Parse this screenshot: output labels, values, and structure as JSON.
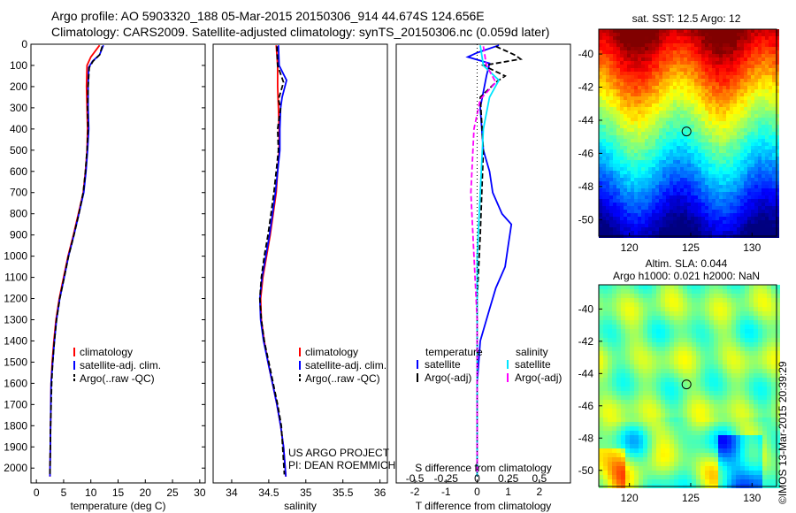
{
  "header": {
    "line1": "Argo profile: AO 5903320_188 05-Mar-2015 20150306_914 44.674S 124.656E",
    "line2": "Climatology: CARS2009. Satellite-adjusted climatology: synTS_20150306.nc (0.059d later)"
  },
  "credits": {
    "line1": "US ARGO PROJECT",
    "line2": "PI: DEAN ROEMMICH"
  },
  "watermark": "©IMOS 13-Mar-2015 20:39:29",
  "colors": {
    "climatology": "#ff0000",
    "satellite": "#0000ff",
    "argo": "#000000",
    "salinity_satellite": "#00e5ff",
    "salinity_argo": "#ff00ff"
  },
  "chart_data": [
    {
      "type": "line",
      "id": "temperature",
      "xlabel": "temperature (deg C)",
      "ylabel": "",
      "xlim": [
        -1,
        31
      ],
      "ylim": [
        2070,
        0
      ],
      "xticks": [
        0,
        5,
        10,
        15,
        20,
        25,
        30
      ],
      "yticks": [
        0,
        100,
        200,
        300,
        400,
        500,
        600,
        700,
        800,
        900,
        1000,
        1100,
        1200,
        1300,
        1400,
        1500,
        1600,
        1700,
        1800,
        1900,
        2000
      ],
      "legend": {
        "position": "bottom-right",
        "entries": [
          "climatology",
          "satellite-adj. clim.",
          "Argo(..raw -QC)"
        ]
      },
      "series": [
        {
          "name": "climatology",
          "color": "#ff0000",
          "x": [
            11.6,
            10.0,
            9.3,
            9.2,
            9.3,
            9.4,
            9.3,
            9.0,
            8.6,
            7.7,
            6.8,
            5.8,
            5.0,
            4.2,
            3.6,
            3.2,
            2.9,
            2.7,
            2.6,
            2.5
          ],
          "y": [
            5,
            60,
            100,
            200,
            300,
            400,
            500,
            600,
            700,
            800,
            900,
            1000,
            1100,
            1200,
            1300,
            1400,
            1500,
            1600,
            1800,
            2040
          ]
        },
        {
          "name": "satellite-adj. clim.",
          "color": "#0000ff",
          "x": [
            12.3,
            11.6,
            10.3,
            9.6,
            9.5,
            9.5,
            9.6,
            9.4,
            9.1,
            8.7,
            7.8,
            6.9,
            5.9,
            5.1,
            4.3,
            3.7,
            3.3,
            3.0,
            2.7,
            2.6,
            2.5
          ],
          "y": [
            5,
            50,
            80,
            110,
            200,
            300,
            400,
            500,
            600,
            700,
            800,
            900,
            1000,
            1100,
            1200,
            1300,
            1400,
            1500,
            1600,
            1800,
            2040
          ]
        },
        {
          "name": "Argo(..raw -QC)",
          "color": "#000000",
          "x": [
            12.1,
            11.6,
            10.4,
            9.7,
            9.5,
            9.4,
            9.5,
            9.3,
            9.0,
            8.6,
            7.8,
            6.9,
            5.9,
            5.1,
            4.3,
            3.7,
            3.3,
            3.0,
            2.8,
            2.6,
            2.5
          ],
          "y": [
            10,
            50,
            80,
            110,
            200,
            300,
            400,
            500,
            600,
            700,
            800,
            900,
            1000,
            1100,
            1200,
            1300,
            1400,
            1500,
            1600,
            1800,
            2030
          ]
        }
      ]
    },
    {
      "type": "line",
      "id": "salinity",
      "xlabel": "salinity",
      "xlim": [
        33.75,
        36.1
      ],
      "ylim": [
        2070,
        0
      ],
      "xticks": [
        34,
        34.5,
        35,
        35.5,
        36
      ],
      "legend": {
        "position": "bottom-right",
        "entries": [
          "climatology",
          "satellite-adj. clim.",
          "Argo(..raw -QC)"
        ]
      },
      "series": [
        {
          "name": "climatology",
          "color": "#ff0000",
          "x": [
            34.6,
            34.62,
            34.62,
            34.63,
            34.64,
            34.64,
            34.62,
            34.6,
            34.56,
            34.52,
            34.47,
            34.42,
            34.39,
            34.4,
            34.44,
            34.49,
            34.55,
            34.61,
            34.66,
            34.7,
            34.73
          ],
          "y": [
            5,
            100,
            200,
            300,
            400,
            500,
            600,
            700,
            800,
            900,
            1000,
            1100,
            1200,
            1300,
            1400,
            1500,
            1600,
            1700,
            1800,
            1900,
            2040
          ]
        },
        {
          "name": "satellite-adj. clim.",
          "color": "#0000ff",
          "x": [
            34.63,
            34.64,
            34.74,
            34.68,
            34.66,
            34.65,
            34.65,
            34.62,
            34.59,
            34.55,
            34.51,
            34.46,
            34.41,
            34.38,
            34.39,
            34.43,
            34.49,
            34.55,
            34.61,
            34.66,
            34.7,
            34.73
          ],
          "y": [
            5,
            100,
            170,
            250,
            300,
            400,
            500,
            600,
            700,
            800,
            900,
            1000,
            1100,
            1200,
            1300,
            1400,
            1500,
            1600,
            1700,
            1800,
            1900,
            2040
          ]
        },
        {
          "name": "Argo(..raw -QC)",
          "color": "#000000",
          "x": [
            34.61,
            34.62,
            34.7,
            34.63,
            34.66,
            34.62,
            34.63,
            34.6,
            34.57,
            34.53,
            34.49,
            34.44,
            34.4,
            34.38,
            34.4,
            34.44,
            34.5,
            34.56,
            34.62,
            34.67,
            34.71
          ],
          "y": [
            10,
            100,
            180,
            260,
            300,
            400,
            500,
            600,
            700,
            800,
            900,
            1000,
            1100,
            1200,
            1300,
            1400,
            1500,
            1600,
            1700,
            1800,
            2030
          ]
        }
      ]
    },
    {
      "type": "line",
      "id": "difference",
      "xlabel": "T difference from climatology",
      "xlabel2": "S difference from climatology",
      "xlim": [
        -2.6,
        3.0
      ],
      "ylim": [
        2070,
        0
      ],
      "xticks": [
        -2,
        -1,
        0,
        1,
        2
      ],
      "xticks2_labels": [
        "-0.5",
        "-0.25",
        "0",
        "0.25",
        "0.5"
      ],
      "xticks2_positions": [
        -2,
        -1,
        0,
        1,
        2
      ],
      "legend": {
        "position": "bottom",
        "temperature_header": "temperature",
        "salinity_header": "salinity",
        "temperature_entries": [
          "satellite",
          "Argo(-adj)"
        ],
        "salinity_entries": [
          "satellite",
          "Argo(-adj)"
        ]
      },
      "series": [
        {
          "name": "temperature satellite",
          "color": "#0000ff",
          "x": [
            0.7,
            0.0,
            -0.3,
            0.4,
            0.3,
            0.1,
            0.2,
            0.4,
            0.5,
            0.8,
            1.1,
            1.0,
            0.9,
            0.6,
            0.4,
            0.1,
            0.0,
            0.0,
            0.0,
            0.0
          ],
          "y": [
            5,
            40,
            60,
            90,
            150,
            300,
            500,
            600,
            700,
            800,
            850,
            950,
            1050,
            1150,
            1250,
            1400,
            1600,
            1800,
            1950,
            2040
          ]
        },
        {
          "name": "temperature Argo(-adj)",
          "color": "#000000",
          "x": [
            0.6,
            1.2,
            1.4,
            0.2,
            0.9,
            0.6,
            0.1,
            0.2,
            0.1,
            0.0,
            0.0,
            0.0,
            0.0
          ],
          "y": [
            10,
            50,
            70,
            100,
            150,
            180,
            250,
            500,
            900,
            1200,
            1500,
            1800,
            2030
          ]
        },
        {
          "name": "salinity satellite",
          "color": "#00e5ff",
          "x": [
            0.1,
            0.2,
            0.7,
            0.4,
            0.2,
            0.1,
            0.0,
            0.0,
            0.0,
            0.0,
            0.0,
            0.0
          ],
          "y": [
            5,
            100,
            170,
            250,
            400,
            700,
            1000,
            1200,
            1400,
            1600,
            1800,
            2040
          ]
        },
        {
          "name": "salinity Argo(-adj)",
          "color": "#ff00ff",
          "x": [
            0.2,
            0.3,
            0.6,
            0.1,
            -0.1,
            -0.2,
            -0.1,
            0.0,
            0.0
          ],
          "y": [
            10,
            100,
            180,
            260,
            400,
            700,
            1000,
            1300,
            2030
          ]
        }
      ],
      "zero_line": {
        "x": 0,
        "style": "dotted"
      }
    },
    {
      "type": "heatmap",
      "id": "sst_map",
      "title": "sat. SST: 12.5 Argo: 12",
      "xlim": [
        117.5,
        132
      ],
      "ylim": [
        -51,
        -38.5
      ],
      "xticks": [
        120,
        125,
        130
      ],
      "yticks": [
        -40,
        -42,
        -44,
        -46,
        -48,
        -50
      ],
      "marker": {
        "lon": 124.656,
        "lat": -44.674
      }
    },
    {
      "type": "heatmap",
      "id": "sla_map",
      "title_line1": "Altim. SLA: 0.044",
      "title_line2": "Argo h1000: 0.021 h2000: NaN",
      "xlim": [
        117.5,
        132
      ],
      "ylim": [
        -51,
        -38.5
      ],
      "xticks": [
        120,
        125,
        130
      ],
      "yticks": [
        -40,
        -42,
        -44,
        -46,
        -48,
        -50
      ],
      "marker": {
        "lon": 124.656,
        "lat": -44.674
      }
    }
  ]
}
